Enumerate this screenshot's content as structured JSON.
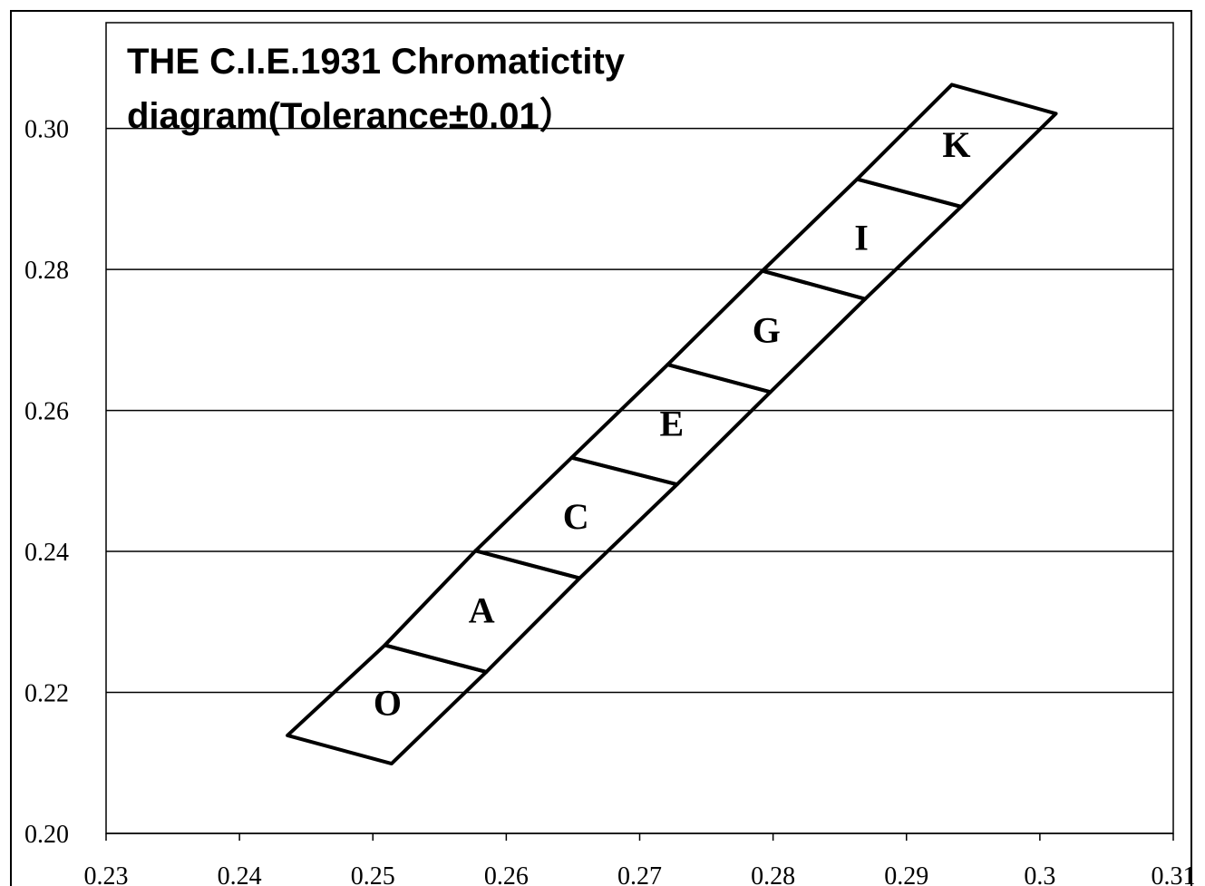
{
  "chart_data": {
    "type": "polygon",
    "title": "THE C.I.E.1931 Chromatictity diagram(Tolerance±0.01）",
    "xlim": [
      0.23,
      0.31
    ],
    "ylim": [
      0.2,
      0.315
    ],
    "xticks": [
      0.23,
      0.24,
      0.25,
      0.26,
      0.27,
      0.28,
      0.29,
      0.3,
      0.31
    ],
    "yticks": [
      {
        "value": 0.2,
        "label": "0.20"
      },
      0.22,
      0.24,
      0.26,
      0.28,
      {
        "value": 0.3,
        "label": "0.30"
      }
    ],
    "grid": true,
    "color": "#000000",
    "bins": [
      {
        "name": "O",
        "x": [
          0.2436,
          0.2509,
          0.2585,
          0.2514
        ],
        "y": [
          0.2139,
          0.2267,
          0.2229,
          0.2099
        ]
      },
      {
        "name": "A",
        "x": [
          0.2509,
          0.2577,
          0.2655,
          0.2585
        ],
        "y": [
          0.2267,
          0.2401,
          0.2362,
          0.2229
        ]
      },
      {
        "name": "C",
        "x": [
          0.2577,
          0.2649,
          0.2728,
          0.2655
        ],
        "y": [
          0.2401,
          0.2533,
          0.2495,
          0.2362
        ]
      },
      {
        "name": "E",
        "x": [
          0.2649,
          0.2721,
          0.2798,
          0.2728
        ],
        "y": [
          0.2533,
          0.2665,
          0.2626,
          0.2495
        ]
      },
      {
        "name": "G",
        "x": [
          0.2721,
          0.2792,
          0.2869,
          0.2798
        ],
        "y": [
          0.2665,
          0.2798,
          0.2758,
          0.2626
        ]
      },
      {
        "name": "I",
        "x": [
          0.2792,
          0.2863,
          0.2941,
          0.2869
        ],
        "y": [
          0.2798,
          0.2928,
          0.2889,
          0.2758
        ]
      },
      {
        "name": "K",
        "x": [
          0.2863,
          0.2934,
          0.3012,
          0.2941
        ],
        "y": [
          0.2928,
          0.3062,
          0.3021,
          0.2889
        ]
      }
    ]
  }
}
